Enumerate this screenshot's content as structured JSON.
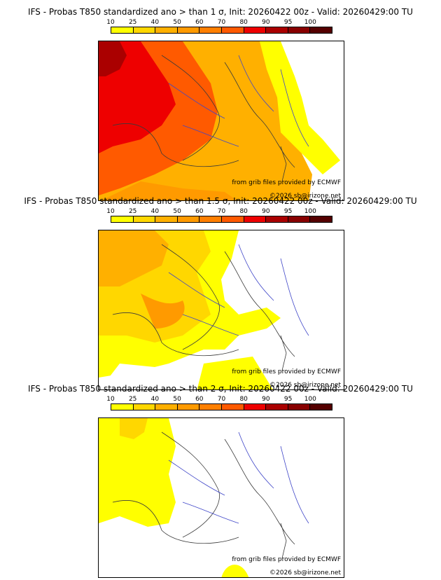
{
  "legend": {
    "ticks": [
      "10",
      "25",
      "40",
      "50",
      "60",
      "70",
      "80",
      "90",
      "95",
      "100"
    ],
    "colors": [
      "#ffff00",
      "#ffd700",
      "#ffb000",
      "#ff9a00",
      "#ff7f00",
      "#ff5a00",
      "#ee0000",
      "#aa0000",
      "#880000",
      "#550000"
    ]
  },
  "credit": {
    "source": "from grib files provided by ECMWF",
    "copyright": "©2026 sb@irizone.net"
  },
  "panels": [
    {
      "title": "IFS - Probas T850  standardized ano > than 1 σ, Init: 20260422 00z - Valid: 20260429:00 TU",
      "threshold_sigma": 1
    },
    {
      "title": "IFS - Probas T850  standardized ano > than 1.5 σ, Init: 20260422 00z - Valid: 20260429:00 TU",
      "threshold_sigma": 1.5
    },
    {
      "title": "IFS - Probas T850  standardized ano > than 2 σ, Init: 20260422 00z - Valid: 20260429:00 TU",
      "threshold_sigma": 2
    }
  ]
}
